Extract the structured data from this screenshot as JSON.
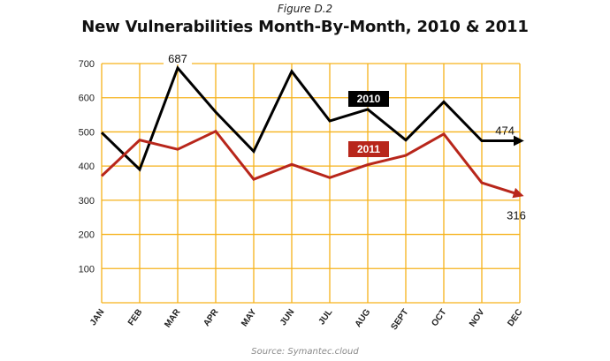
{
  "figure_label": "Figure D.2",
  "source": "Source: Symantec.cloud",
  "colors": {
    "grid": "#f6b21b",
    "series_2010": "#000000",
    "series_2011": "#b8261b"
  },
  "chart_data": {
    "type": "line",
    "title": "New Vulnerabilities Month-By-Month, 2010 & 2011",
    "xlabel": "",
    "ylabel": "",
    "categories": [
      "JAN",
      "FEB",
      "MAR",
      "APR",
      "MAY",
      "JUN",
      "JUL",
      "AUG",
      "SEPT",
      "OCT",
      "NOV",
      "DEC"
    ],
    "yticks": [
      100,
      200,
      300,
      400,
      500,
      600,
      700
    ],
    "ylim": [
      0,
      700
    ],
    "grid": true,
    "series": [
      {
        "name": "2010",
        "values": [
          498,
          390,
          687,
          558,
          443,
          677,
          532,
          566,
          476,
          588,
          474,
          474
        ]
      },
      {
        "name": "2011",
        "values": [
          371,
          476,
          449,
          502,
          361,
          405,
          366,
          404,
          431,
          494,
          351,
          316
        ]
      }
    ],
    "annotations": [
      {
        "text": "687",
        "series": 0,
        "index": 2
      },
      {
        "text": "474",
        "series": 0,
        "index": 11
      },
      {
        "text": "316",
        "series": 1,
        "index": 11
      }
    ]
  }
}
